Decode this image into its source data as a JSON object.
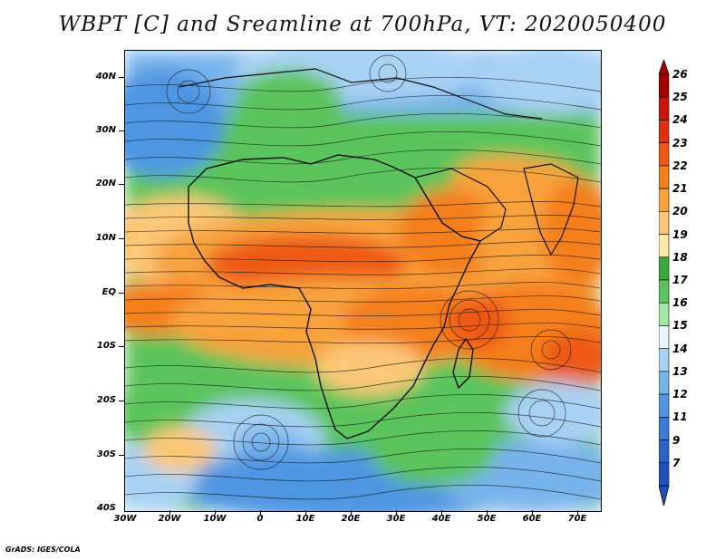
{
  "title": "WBPT [C] and Sreamline at 700hPa, VT: 2020050400",
  "credit": "GrADS: IGES/COLA",
  "lat_labels": [
    "40N",
    "30N",
    "20N",
    "10N",
    "EQ",
    "10S",
    "20S",
    "30S",
    "40S"
  ],
  "lon_labels": [
    "30W",
    "20W",
    "10W",
    "0",
    "10E",
    "20E",
    "30E",
    "40E",
    "50E",
    "60E",
    "70E"
  ],
  "colorbar": {
    "levels": [
      "26",
      "25",
      "24",
      "23",
      "22",
      "21",
      "20",
      "19",
      "18",
      "17",
      "16",
      "15",
      "14",
      "13",
      "12",
      "11",
      "9",
      "7"
    ],
    "colors": [
      "#a50000",
      "#c8140a",
      "#e0300f",
      "#ee5a14",
      "#f57f1c",
      "#f7a23c",
      "#fbc878",
      "#fde9a6",
      "#3aa83a",
      "#5cc45c",
      "#a6e6a6",
      "#e8f6ff",
      "#a8d2f4",
      "#78b4ec",
      "#5096e2",
      "#3c7cd8",
      "#2a64cc",
      "#1e50c0"
    ]
  },
  "legend_colors": {
    "cold": "#2a64cc",
    "cool": "#a8d2f4",
    "mild": "#5cc45c",
    "warm": "#fbc878",
    "hot": "#ee5a14"
  }
}
